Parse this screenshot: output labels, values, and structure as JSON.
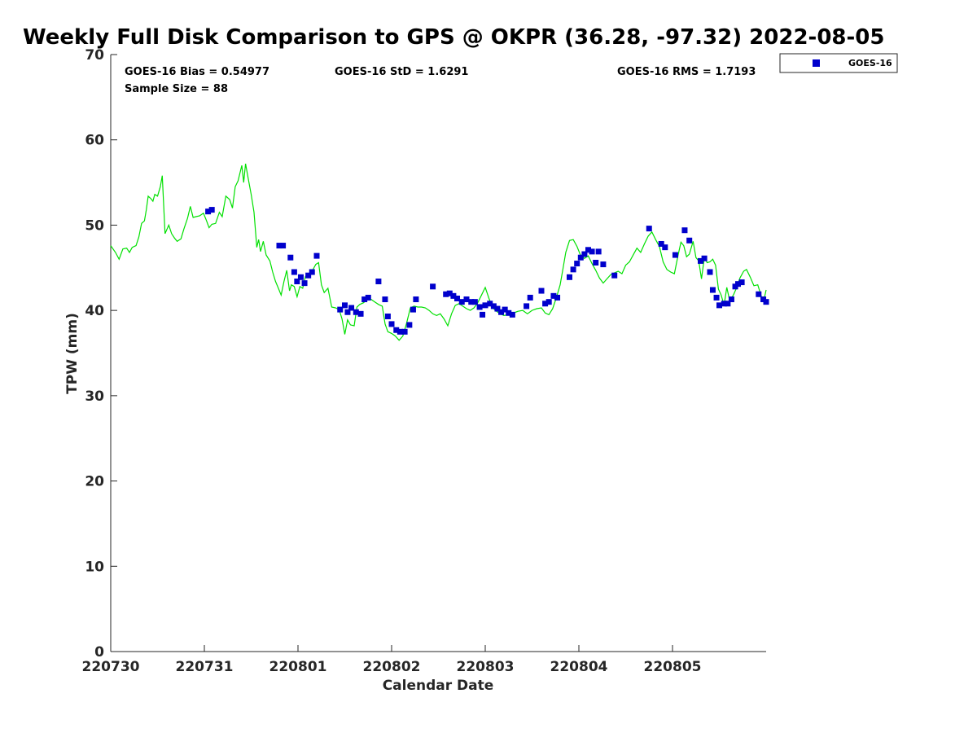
{
  "chart_data": {
    "type": "line",
    "title": "Weekly Full Disk Comparison to GPS @ OKPR (36.28, -97.32) 2022-08-05",
    "xlabel": "Calendar Date",
    "ylabel": "TPW (mm)",
    "xlim": [
      0,
      7
    ],
    "ylim": [
      0,
      70
    ],
    "xticks": [
      {
        "value": 0,
        "label": "220730"
      },
      {
        "value": 1,
        "label": "220731"
      },
      {
        "value": 2,
        "label": "220801"
      },
      {
        "value": 3,
        "label": "220802"
      },
      {
        "value": 4,
        "label": "220803"
      },
      {
        "value": 5,
        "label": "220804"
      },
      {
        "value": 6,
        "label": "220805"
      }
    ],
    "yticks": [
      0,
      10,
      20,
      30,
      40,
      50,
      60,
      70
    ],
    "grid": false,
    "legend_position": "outside-top-right",
    "stats": {
      "bias": "GOES-16 Bias = 0.54977",
      "std": "GOES-16 StD = 1.6291",
      "rms": "GOES-16 RMS = 1.7193",
      "sample": "Sample Size = 88"
    },
    "series": [
      {
        "name": "GPS",
        "kind": "line",
        "color": "#00e000",
        "points": [
          [
            0.0,
            47.6
          ],
          [
            0.05,
            46.8
          ],
          [
            0.09,
            46.0
          ],
          [
            0.13,
            47.2
          ],
          [
            0.17,
            47.3
          ],
          [
            0.2,
            46.8
          ],
          [
            0.23,
            47.4
          ],
          [
            0.27,
            47.6
          ],
          [
            0.3,
            48.6
          ],
          [
            0.33,
            50.2
          ],
          [
            0.36,
            50.5
          ],
          [
            0.38,
            51.8
          ],
          [
            0.4,
            53.4
          ],
          [
            0.43,
            53.1
          ],
          [
            0.45,
            52.8
          ],
          [
            0.47,
            53.6
          ],
          [
            0.5,
            53.4
          ],
          [
            0.53,
            54.5
          ],
          [
            0.55,
            55.8
          ],
          [
            0.58,
            49.0
          ],
          [
            0.62,
            50.0
          ],
          [
            0.65,
            49.0
          ],
          [
            0.68,
            48.5
          ],
          [
            0.71,
            48.1
          ],
          [
            0.75,
            48.4
          ],
          [
            0.78,
            49.5
          ],
          [
            0.82,
            50.8
          ],
          [
            0.85,
            52.2
          ],
          [
            0.88,
            50.9
          ],
          [
            0.91,
            51.0
          ],
          [
            0.95,
            51.1
          ],
          [
            0.99,
            51.4
          ],
          [
            1.02,
            50.6
          ],
          [
            1.05,
            49.7
          ],
          [
            1.08,
            50.1
          ],
          [
            1.12,
            50.2
          ],
          [
            1.16,
            51.5
          ],
          [
            1.19,
            51.0
          ],
          [
            1.23,
            53.4
          ],
          [
            1.27,
            53.0
          ],
          [
            1.3,
            52.0
          ],
          [
            1.33,
            54.5
          ],
          [
            1.36,
            55.2
          ],
          [
            1.4,
            57.0
          ],
          [
            1.42,
            55.0
          ],
          [
            1.44,
            57.2
          ],
          [
            1.47,
            55.4
          ],
          [
            1.5,
            53.6
          ],
          [
            1.53,
            51.5
          ],
          [
            1.56,
            47.4
          ],
          [
            1.58,
            48.3
          ],
          [
            1.6,
            46.9
          ],
          [
            1.63,
            48.1
          ],
          [
            1.66,
            46.5
          ],
          [
            1.7,
            45.8
          ],
          [
            1.73,
            44.5
          ],
          [
            1.76,
            43.4
          ],
          [
            1.79,
            42.6
          ],
          [
            1.82,
            41.8
          ],
          [
            1.85,
            43.4
          ],
          [
            1.88,
            44.7
          ],
          [
            1.91,
            42.3
          ],
          [
            1.93,
            43.0
          ],
          [
            1.96,
            42.8
          ],
          [
            1.99,
            41.6
          ],
          [
            2.02,
            42.8
          ],
          [
            2.05,
            42.6
          ],
          [
            2.08,
            44.0
          ],
          [
            2.11,
            44.3
          ],
          [
            2.15,
            44.6
          ],
          [
            2.19,
            45.4
          ],
          [
            2.22,
            45.6
          ],
          [
            2.25,
            43.0
          ],
          [
            2.28,
            42.1
          ],
          [
            2.32,
            42.6
          ],
          [
            2.36,
            40.4
          ],
          [
            2.4,
            40.3
          ],
          [
            2.44,
            40.1
          ],
          [
            2.47,
            39.0
          ],
          [
            2.5,
            37.2
          ],
          [
            2.53,
            38.9
          ],
          [
            2.56,
            38.3
          ],
          [
            2.6,
            38.2
          ],
          [
            2.63,
            40.4
          ],
          [
            2.66,
            40.7
          ],
          [
            2.7,
            40.9
          ],
          [
            2.74,
            41.3
          ],
          [
            2.78,
            41.3
          ],
          [
            2.82,
            41.0
          ],
          [
            2.86,
            40.7
          ],
          [
            2.9,
            40.5
          ],
          [
            2.93,
            38.4
          ],
          [
            2.96,
            37.5
          ],
          [
            3.0,
            37.3
          ],
          [
            3.04,
            37.0
          ],
          [
            3.08,
            36.5
          ],
          [
            3.12,
            37.0
          ],
          [
            3.16,
            38.5
          ],
          [
            3.2,
            40.3
          ],
          [
            3.24,
            40.5
          ],
          [
            3.28,
            40.4
          ],
          [
            3.32,
            40.4
          ],
          [
            3.36,
            40.3
          ],
          [
            3.4,
            40.0
          ],
          [
            3.44,
            39.6
          ],
          [
            3.48,
            39.4
          ],
          [
            3.52,
            39.6
          ],
          [
            3.56,
            39.0
          ],
          [
            3.6,
            38.2
          ],
          [
            3.64,
            39.6
          ],
          [
            3.68,
            40.6
          ],
          [
            3.72,
            40.8
          ],
          [
            3.76,
            40.5
          ],
          [
            3.8,
            40.2
          ],
          [
            3.84,
            40.0
          ],
          [
            3.88,
            40.3
          ],
          [
            3.92,
            40.9
          ],
          [
            3.96,
            41.8
          ],
          [
            4.0,
            42.7
          ],
          [
            4.04,
            41.4
          ],
          [
            4.08,
            40.3
          ],
          [
            4.12,
            39.9
          ],
          [
            4.16,
            39.6
          ],
          [
            4.2,
            39.4
          ],
          [
            4.25,
            39.5
          ],
          [
            4.3,
            39.7
          ],
          [
            4.35,
            39.9
          ],
          [
            4.4,
            40.0
          ],
          [
            4.45,
            39.6
          ],
          [
            4.5,
            40.0
          ],
          [
            4.55,
            40.2
          ],
          [
            4.6,
            40.3
          ],
          [
            4.64,
            39.7
          ],
          [
            4.68,
            39.5
          ],
          [
            4.72,
            40.2
          ],
          [
            4.76,
            41.5
          ],
          [
            4.8,
            43.0
          ],
          [
            4.83,
            44.9
          ],
          [
            4.86,
            46.8
          ],
          [
            4.9,
            48.2
          ],
          [
            4.94,
            48.3
          ],
          [
            4.98,
            47.5
          ],
          [
            5.02,
            46.4
          ],
          [
            5.06,
            46.1
          ],
          [
            5.1,
            46.4
          ],
          [
            5.14,
            45.5
          ],
          [
            5.18,
            44.7
          ],
          [
            5.22,
            43.8
          ],
          [
            5.26,
            43.2
          ],
          [
            5.3,
            43.7
          ],
          [
            5.34,
            44.2
          ],
          [
            5.38,
            44.4
          ],
          [
            5.42,
            44.6
          ],
          [
            5.46,
            44.3
          ],
          [
            5.5,
            45.3
          ],
          [
            5.54,
            45.7
          ],
          [
            5.58,
            46.5
          ],
          [
            5.62,
            47.3
          ],
          [
            5.66,
            46.8
          ],
          [
            5.7,
            47.8
          ],
          [
            5.74,
            48.7
          ],
          [
            5.78,
            49.2
          ],
          [
            5.82,
            48.3
          ],
          [
            5.86,
            47.5
          ],
          [
            5.9,
            45.7
          ],
          [
            5.94,
            44.8
          ],
          [
            5.98,
            44.5
          ],
          [
            6.02,
            44.3
          ],
          [
            6.06,
            46.5
          ],
          [
            6.09,
            48.0
          ],
          [
            6.12,
            47.6
          ],
          [
            6.15,
            46.3
          ],
          [
            6.18,
            46.6
          ],
          [
            6.22,
            48.1
          ],
          [
            6.25,
            46.2
          ],
          [
            6.28,
            45.8
          ],
          [
            6.31,
            43.7
          ],
          [
            6.34,
            46.2
          ],
          [
            6.37,
            45.6
          ],
          [
            6.4,
            45.7
          ],
          [
            6.43,
            46.0
          ],
          [
            6.46,
            45.3
          ],
          [
            6.49,
            42.5
          ],
          [
            6.52,
            41.8
          ],
          [
            6.55,
            40.6
          ],
          [
            6.58,
            42.7
          ],
          [
            6.61,
            41.2
          ],
          [
            6.65,
            41.8
          ],
          [
            6.69,
            42.8
          ],
          [
            6.72,
            43.8
          ],
          [
            6.76,
            44.6
          ],
          [
            6.79,
            44.8
          ],
          [
            6.83,
            43.9
          ],
          [
            6.87,
            42.9
          ],
          [
            6.91,
            43.0
          ],
          [
            6.95,
            41.6
          ],
          [
            6.98,
            41.4
          ],
          [
            7.0,
            42.4
          ]
        ]
      },
      {
        "name": "GOES-16",
        "kind": "scatter",
        "color": "#0000cc",
        "points": [
          [
            1.04,
            51.6
          ],
          [
            1.08,
            51.8
          ],
          [
            1.8,
            47.6
          ],
          [
            1.84,
            47.6
          ],
          [
            1.92,
            46.2
          ],
          [
            1.96,
            44.5
          ],
          [
            1.99,
            43.4
          ],
          [
            2.03,
            43.9
          ],
          [
            2.07,
            43.2
          ],
          [
            2.11,
            44.1
          ],
          [
            2.15,
            44.5
          ],
          [
            2.2,
            46.4
          ],
          [
            2.45,
            40.1
          ],
          [
            2.5,
            40.6
          ],
          [
            2.53,
            39.8
          ],
          [
            2.57,
            40.3
          ],
          [
            2.62,
            39.8
          ],
          [
            2.67,
            39.6
          ],
          [
            2.71,
            41.3
          ],
          [
            2.75,
            41.5
          ],
          [
            2.86,
            43.4
          ],
          [
            2.93,
            41.3
          ],
          [
            2.96,
            39.3
          ],
          [
            3.0,
            38.4
          ],
          [
            3.05,
            37.7
          ],
          [
            3.09,
            37.5
          ],
          [
            3.14,
            37.5
          ],
          [
            3.19,
            38.3
          ],
          [
            3.23,
            40.1
          ],
          [
            3.26,
            41.3
          ],
          [
            3.44,
            42.8
          ],
          [
            3.58,
            41.9
          ],
          [
            3.62,
            42.0
          ],
          [
            3.66,
            41.7
          ],
          [
            3.7,
            41.4
          ],
          [
            3.75,
            41.0
          ],
          [
            3.8,
            41.3
          ],
          [
            3.85,
            41.0
          ],
          [
            3.89,
            41.0
          ],
          [
            3.94,
            40.4
          ],
          [
            3.97,
            39.5
          ],
          [
            4.0,
            40.6
          ],
          [
            4.05,
            40.8
          ],
          [
            4.09,
            40.5
          ],
          [
            4.13,
            40.2
          ],
          [
            4.17,
            39.8
          ],
          [
            4.21,
            40.1
          ],
          [
            4.25,
            39.7
          ],
          [
            4.29,
            39.5
          ],
          [
            4.44,
            40.5
          ],
          [
            4.48,
            41.5
          ],
          [
            4.6,
            42.3
          ],
          [
            4.64,
            40.8
          ],
          [
            4.68,
            41.0
          ],
          [
            4.73,
            41.7
          ],
          [
            4.77,
            41.5
          ],
          [
            4.9,
            43.9
          ],
          [
            4.94,
            44.8
          ],
          [
            4.98,
            45.5
          ],
          [
            5.02,
            46.2
          ],
          [
            5.06,
            46.6
          ],
          [
            5.1,
            47.1
          ],
          [
            5.14,
            46.9
          ],
          [
            5.18,
            45.6
          ],
          [
            5.21,
            46.9
          ],
          [
            5.26,
            45.4
          ],
          [
            5.38,
            44.1
          ],
          [
            5.75,
            49.6
          ],
          [
            5.88,
            47.8
          ],
          [
            5.92,
            47.4
          ],
          [
            6.03,
            46.5
          ],
          [
            6.13,
            49.4
          ],
          [
            6.18,
            48.2
          ],
          [
            6.3,
            45.8
          ],
          [
            6.34,
            46.1
          ],
          [
            6.4,
            44.5
          ],
          [
            6.43,
            42.4
          ],
          [
            6.47,
            41.5
          ],
          [
            6.5,
            40.6
          ],
          [
            6.55,
            40.8
          ],
          [
            6.59,
            40.8
          ],
          [
            6.63,
            41.3
          ],
          [
            6.67,
            42.8
          ],
          [
            6.7,
            43.1
          ],
          [
            6.74,
            43.3
          ],
          [
            6.92,
            41.9
          ],
          [
            6.97,
            41.3
          ],
          [
            7.0,
            41.0
          ]
        ]
      }
    ]
  }
}
